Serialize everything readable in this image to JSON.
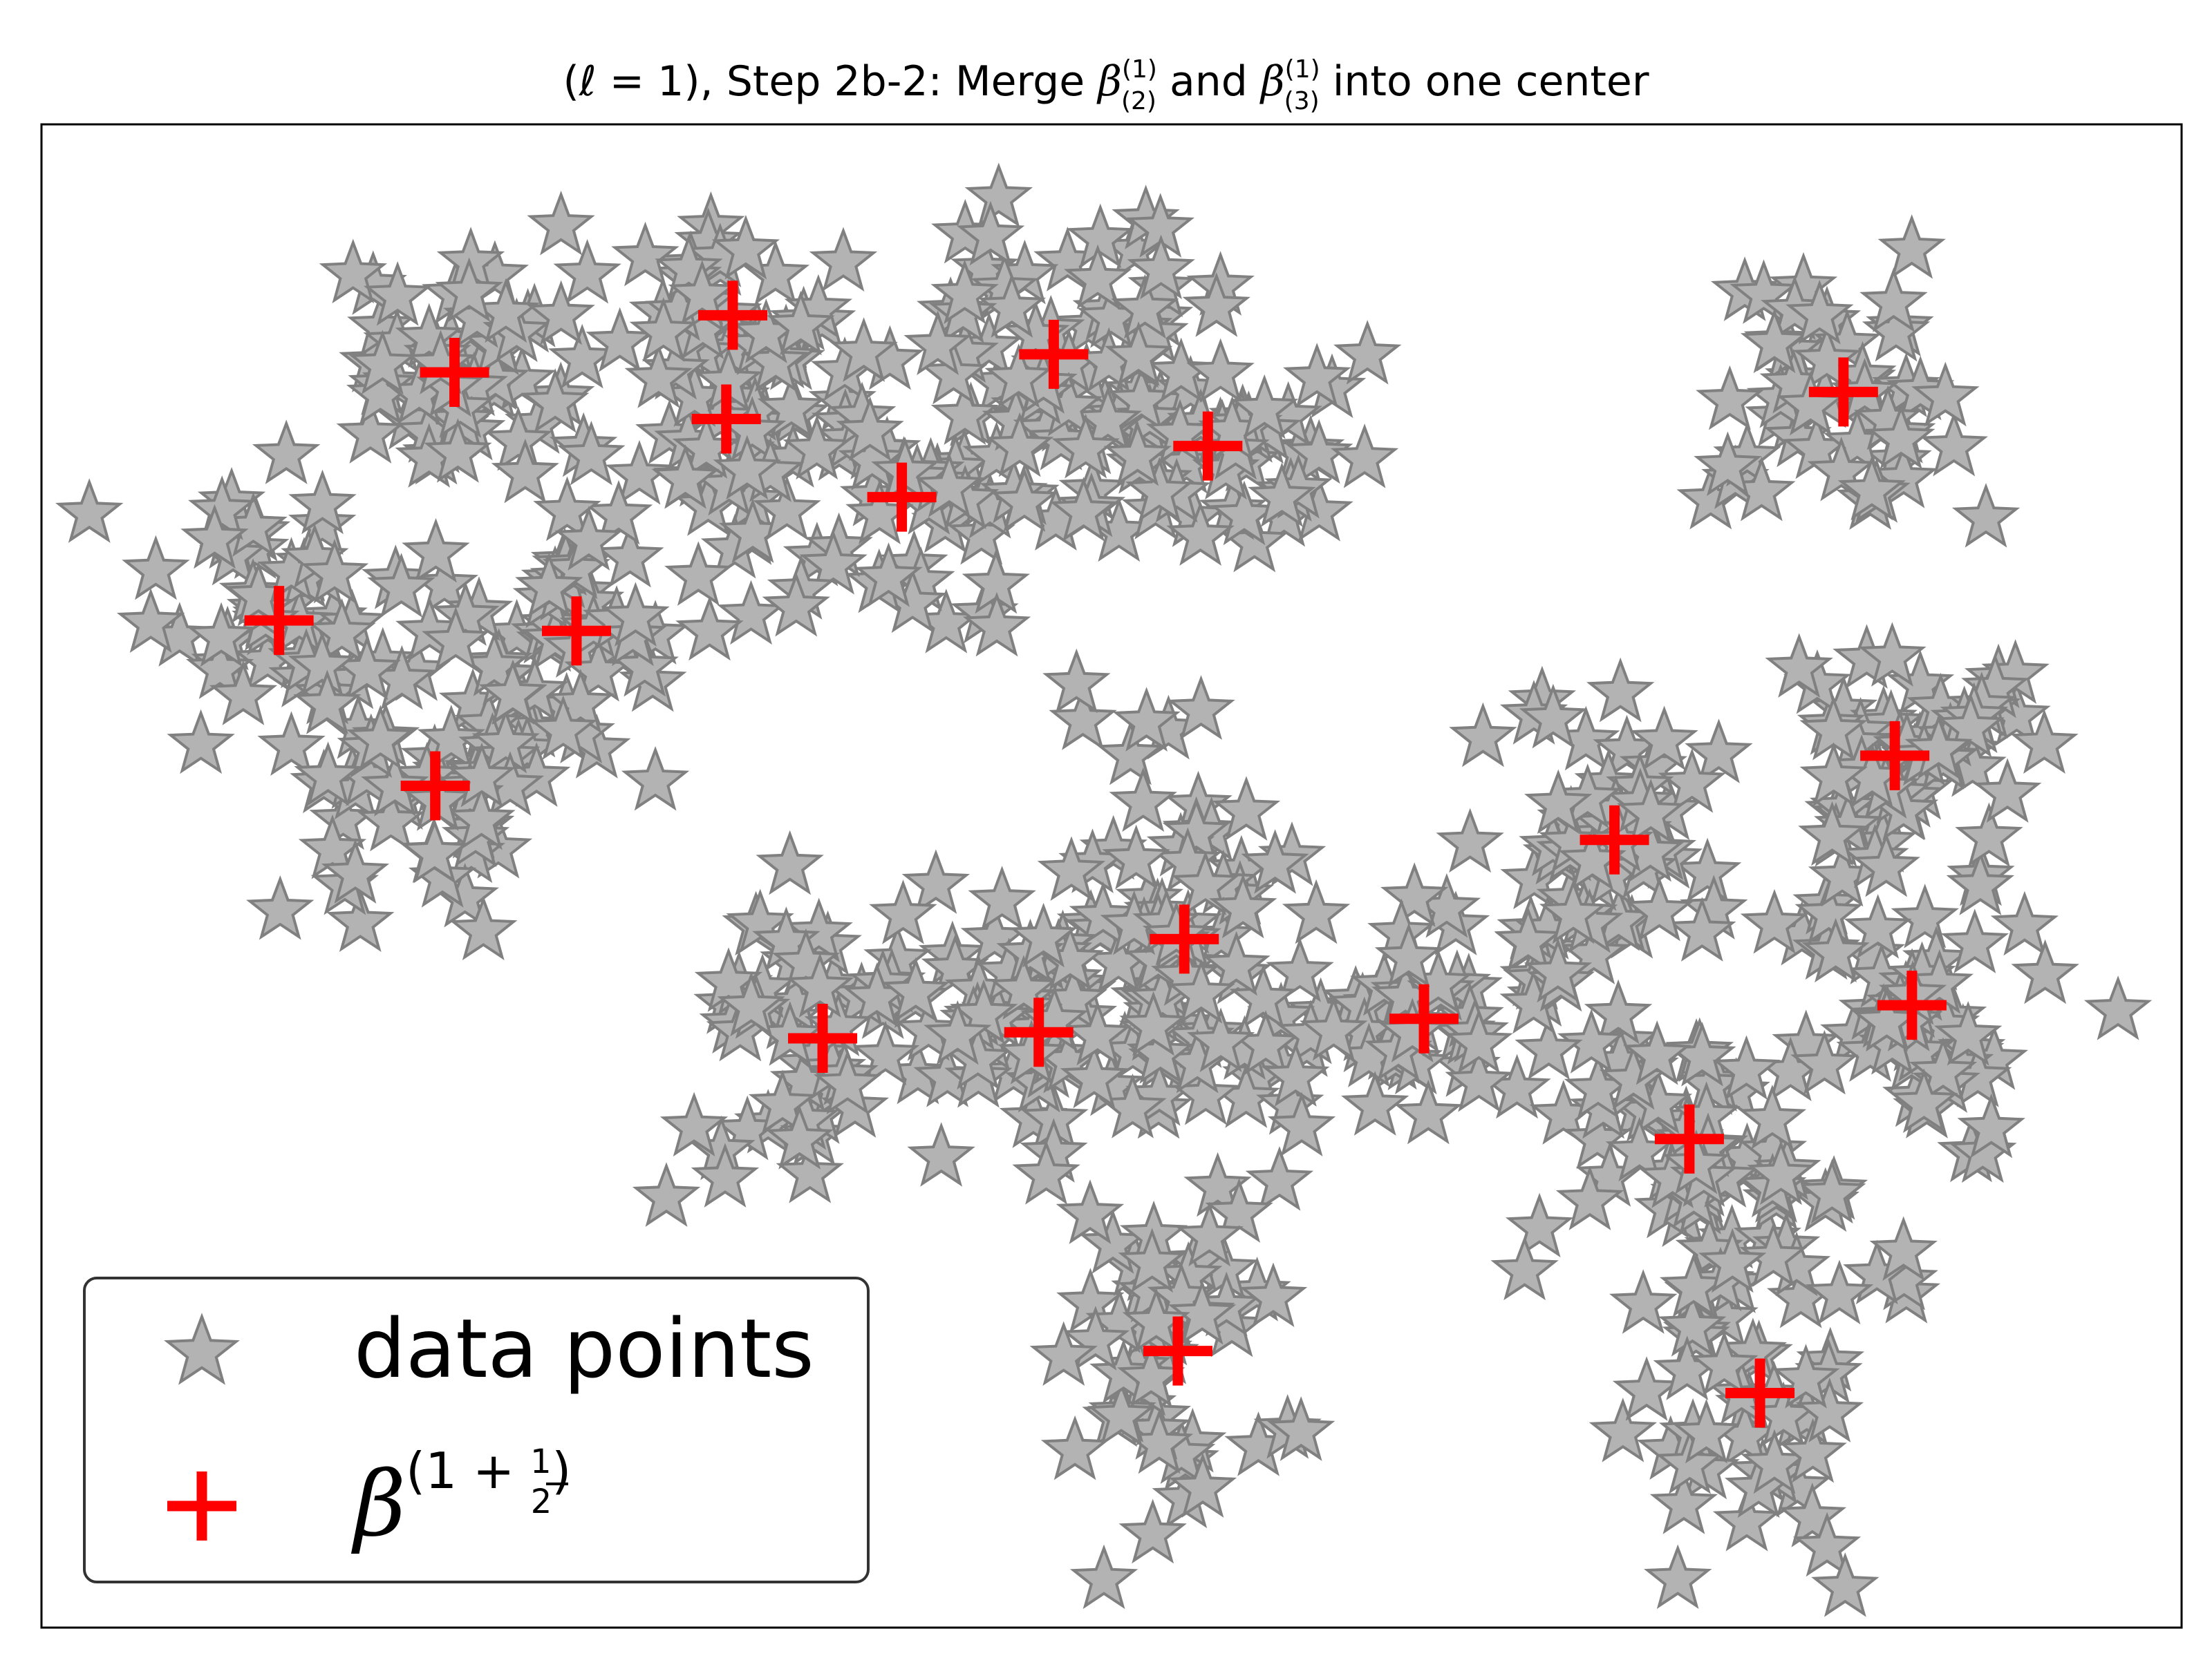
{
  "chart_data": {
    "type": "scatter",
    "title": {
      "prefix": "(ℓ = 1), Step 2b-2: Merge ",
      "beta": "β",
      "sup": "(1)",
      "sub_a": "(2)",
      "and": " and ",
      "sub_b": "(3)",
      "suffix": " into one center"
    },
    "xlim": [
      0,
      100
    ],
    "ylim": [
      0,
      100
    ],
    "grid": false,
    "legend": {
      "position": "lower-left",
      "entries": [
        {
          "label": "data points",
          "marker": "star",
          "color": "#b3b3b3",
          "edge": "#808080"
        },
        {
          "label_beta": "β",
          "label_open": "(1 + ",
          "label_num": "1",
          "label_den": "2",
          "label_close": ")",
          "marker": "plus",
          "color": "#ff0000"
        }
      ]
    },
    "centers": [
      [
        19.3,
        83.5
      ],
      [
        32.3,
        87.3
      ],
      [
        32.0,
        80.4
      ],
      [
        47.3,
        84.7
      ],
      [
        40.2,
        75.2
      ],
      [
        54.5,
        78.6
      ],
      [
        11.1,
        67.0
      ],
      [
        25.0,
        66.3
      ],
      [
        18.4,
        56.0
      ],
      [
        84.2,
        82.2
      ],
      [
        86.6,
        58.0
      ],
      [
        73.5,
        52.4
      ],
      [
        53.4,
        45.8
      ],
      [
        36.5,
        39.2
      ],
      [
        46.6,
        39.6
      ],
      [
        64.6,
        40.5
      ],
      [
        87.4,
        41.4
      ],
      [
        77.0,
        32.5
      ],
      [
        53.1,
        18.4
      ],
      [
        80.3,
        15.6
      ]
    ],
    "clusters": [
      {
        "cx": 19.3,
        "cy": 83.5,
        "sx": 3.2,
        "sy": 4.0,
        "n": 60
      },
      {
        "cx": 32.3,
        "cy": 87.3,
        "sx": 2.6,
        "sy": 3.0,
        "n": 35
      },
      {
        "cx": 32.0,
        "cy": 80.4,
        "sx": 2.6,
        "sy": 3.0,
        "n": 35
      },
      {
        "cx": 47.3,
        "cy": 84.7,
        "sx": 4.0,
        "sy": 4.5,
        "n": 65
      },
      {
        "cx": 40.2,
        "cy": 75.2,
        "sx": 3.6,
        "sy": 4.5,
        "n": 50
      },
      {
        "cx": 54.5,
        "cy": 78.6,
        "sx": 3.4,
        "sy": 4.0,
        "n": 55
      },
      {
        "cx": 11.1,
        "cy": 67.0,
        "sx": 3.4,
        "sy": 4.2,
        "n": 55
      },
      {
        "cx": 25.0,
        "cy": 66.3,
        "sx": 3.6,
        "sy": 5.0,
        "n": 55
      },
      {
        "cx": 18.4,
        "cy": 56.0,
        "sx": 3.4,
        "sy": 4.0,
        "n": 55
      },
      {
        "cx": 84.2,
        "cy": 82.2,
        "sx": 2.8,
        "sy": 4.2,
        "n": 50
      },
      {
        "cx": 86.6,
        "cy": 58.0,
        "sx": 3.0,
        "sy": 4.5,
        "n": 60
      },
      {
        "cx": 73.5,
        "cy": 52.4,
        "sx": 3.0,
        "sy": 5.0,
        "n": 55
      },
      {
        "cx": 53.4,
        "cy": 45.8,
        "sx": 3.6,
        "sy": 6.5,
        "n": 70
      },
      {
        "cx": 36.5,
        "cy": 39.2,
        "sx": 3.4,
        "sy": 4.5,
        "n": 55
      },
      {
        "cx": 46.6,
        "cy": 39.6,
        "sx": 3.6,
        "sy": 4.5,
        "n": 60
      },
      {
        "cx": 64.6,
        "cy": 40.5,
        "sx": 3.4,
        "sy": 4.5,
        "n": 55
      },
      {
        "cx": 87.4,
        "cy": 41.4,
        "sx": 3.0,
        "sy": 4.5,
        "n": 55
      },
      {
        "cx": 77.0,
        "cy": 32.5,
        "sx": 3.2,
        "sy": 5.5,
        "n": 60
      },
      {
        "cx": 53.1,
        "cy": 18.4,
        "sx": 2.6,
        "sy": 6.0,
        "n": 55
      },
      {
        "cx": 80.3,
        "cy": 15.6,
        "sx": 3.2,
        "sy": 6.0,
        "n": 55
      }
    ]
  }
}
